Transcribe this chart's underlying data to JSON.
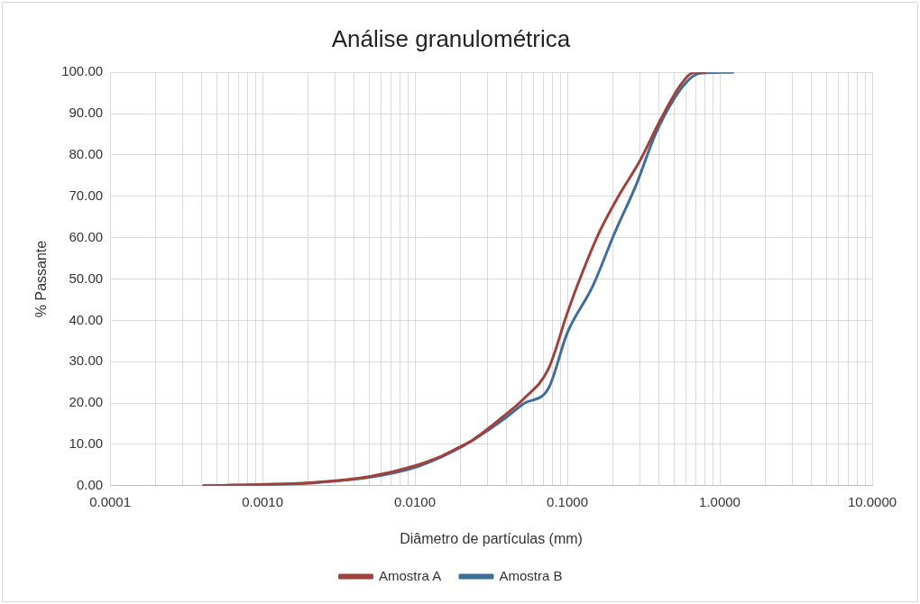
{
  "chart_data": {
    "type": "line",
    "title": "Análise granulométrica",
    "xlabel": "Diâmetro de partículas (mm)",
    "ylabel": "% Passante",
    "log": "x",
    "grid": true,
    "legend": "bottom",
    "marker": "none",
    "line_style": "solid",
    "xlim": [
      0.0001,
      10
    ],
    "ylim": [
      0,
      100
    ],
    "xticks": [
      {
        "value": 0.0001,
        "label": "0.0001"
      },
      {
        "value": 0.0002,
        "label": null
      },
      {
        "value": 0.0003,
        "label": null
      },
      {
        "value": 0.0004,
        "label": null
      },
      {
        "value": 0.0005,
        "label": null
      },
      {
        "value": 0.0006,
        "label": null
      },
      {
        "value": 0.0007,
        "label": null
      },
      {
        "value": 0.0008,
        "label": null
      },
      {
        "value": 0.0009,
        "label": null
      },
      {
        "value": 0.001,
        "label": "0.0010"
      },
      {
        "value": 0.002,
        "label": null
      },
      {
        "value": 0.003,
        "label": null
      },
      {
        "value": 0.004,
        "label": null
      },
      {
        "value": 0.005,
        "label": null
      },
      {
        "value": 0.006,
        "label": null
      },
      {
        "value": 0.007,
        "label": null
      },
      {
        "value": 0.008,
        "label": null
      },
      {
        "value": 0.009,
        "label": null
      },
      {
        "value": 0.01,
        "label": "0.0100"
      },
      {
        "value": 0.02,
        "label": null
      },
      {
        "value": 0.03,
        "label": null
      },
      {
        "value": 0.04,
        "label": null
      },
      {
        "value": 0.05,
        "label": null
      },
      {
        "value": 0.06,
        "label": null
      },
      {
        "value": 0.07,
        "label": null
      },
      {
        "value": 0.08,
        "label": null
      },
      {
        "value": 0.09,
        "label": null
      },
      {
        "value": 0.1,
        "label": "0.1000"
      },
      {
        "value": 0.2,
        "label": null
      },
      {
        "value": 0.3,
        "label": null
      },
      {
        "value": 0.4,
        "label": null
      },
      {
        "value": 0.5,
        "label": null
      },
      {
        "value": 0.6,
        "label": null
      },
      {
        "value": 0.7,
        "label": null
      },
      {
        "value": 0.8,
        "label": null
      },
      {
        "value": 0.9,
        "label": null
      },
      {
        "value": 1,
        "label": "1.0000"
      },
      {
        "value": 2,
        "label": null
      },
      {
        "value": 3,
        "label": null
      },
      {
        "value": 4,
        "label": null
      },
      {
        "value": 5,
        "label": null
      },
      {
        "value": 6,
        "label": null
      },
      {
        "value": 7,
        "label": null
      },
      {
        "value": 8,
        "label": null
      },
      {
        "value": 9,
        "label": null
      },
      {
        "value": 10,
        "label": "10.0000"
      }
    ],
    "yticks": [
      {
        "value": 0,
        "label": "0.00"
      },
      {
        "value": 10,
        "label": "10.00"
      },
      {
        "value": 20,
        "label": "20.00"
      },
      {
        "value": 30,
        "label": "30.00"
      },
      {
        "value": 40,
        "label": "40.00"
      },
      {
        "value": 50,
        "label": "50.00"
      },
      {
        "value": 60,
        "label": "60.00"
      },
      {
        "value": 70,
        "label": "70.00"
      },
      {
        "value": 80,
        "label": "80.00"
      },
      {
        "value": 90,
        "label": "90.00"
      },
      {
        "value": 100,
        "label": "100.00"
      }
    ],
    "series": [
      {
        "name": "Amostra A",
        "color": "#a0413c",
        "x": [
          0.00041,
          0.0015,
          0.002,
          0.005,
          0.01,
          0.015,
          0.02,
          0.024,
          0.039,
          0.052,
          0.075,
          0.1,
          0.115,
          0.16,
          0.213,
          0.297,
          0.412,
          0.547,
          0.66,
          0.8
        ],
        "values": [
          0,
          0.5,
          0.7,
          2.2,
          4.8,
          7.2,
          9.5,
          11.1,
          17.1,
          21.1,
          28.2,
          41.8,
          48,
          60.9,
          69.6,
          78.4,
          88.8,
          96.7,
          99.8,
          100
        ]
      },
      {
        "name": "Amostra B",
        "color": "#3f6d9b",
        "x": [
          0.00041,
          0.0015,
          0.002,
          0.005,
          0.01,
          0.015,
          0.02,
          0.024,
          0.039,
          0.052,
          0.075,
          0.1,
          0.146,
          0.203,
          0.283,
          0.375,
          0.5,
          0.63,
          0.76,
          1.22
        ],
        "values": [
          0,
          0.4,
          0.6,
          2,
          4.4,
          7,
          9.3,
          11,
          16.3,
          19.9,
          23.5,
          37,
          48.1,
          60.9,
          72.8,
          84.7,
          93.5,
          98.3,
          99.8,
          100
        ]
      }
    ]
  }
}
